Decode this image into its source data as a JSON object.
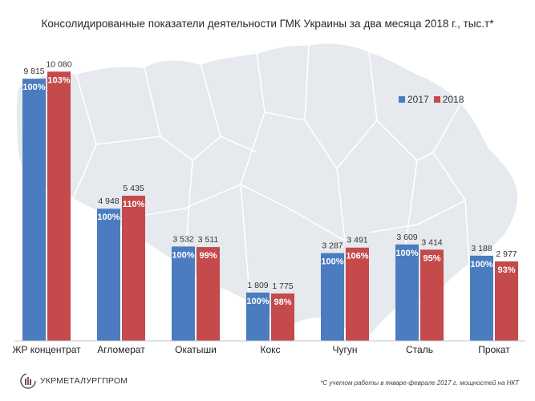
{
  "title": "Консолидированные показатели деятельности ГМК Украины за два месяца 2018 г., тыс.т*",
  "footnote": "*С учетом работы в январе-феврале  2017  г. мощностей на НКТ",
  "logo_text": "УКРМЕТАЛУРГПРОМ",
  "colors": {
    "s2017": "#4a7cbf",
    "s2018": "#c44a4c",
    "map": "#e6e9ee"
  },
  "chart_data": {
    "type": "bar",
    "title": "Консолидированные показатели деятельности ГМК Украины за два месяца 2018 г., тыс.т*",
    "xlabel": "",
    "ylabel": "",
    "ylim": [
      0,
      10500
    ],
    "grid": false,
    "legend_position": "right",
    "categories": [
      "ЖР концентрат",
      "Агломерат",
      "Окатыши",
      "Кокс",
      "Чугун",
      "Сталь",
      "Прокат"
    ],
    "series": [
      {
        "name": "2017",
        "values": [
          9815,
          4948,
          3532,
          1809,
          3287,
          3609,
          3188
        ],
        "value_labels": [
          "9 815",
          "4 948",
          "3 532",
          "1 809",
          "3 287",
          "3 609",
          "3 188"
        ],
        "percent_labels": [
          "100%",
          "100%",
          "100%",
          "100%",
          "100%",
          "100%",
          "100%"
        ]
      },
      {
        "name": "2018",
        "values": [
          10080,
          5435,
          3511,
          1775,
          3491,
          3414,
          2977
        ],
        "value_labels": [
          "10 080",
          "5 435",
          "3 511",
          "1 775",
          "3 491",
          "3 414",
          "2 977"
        ],
        "percent_labels": [
          "103%",
          "110%",
          "99%",
          "98%",
          "106%",
          "95%",
          "93%"
        ]
      }
    ]
  }
}
